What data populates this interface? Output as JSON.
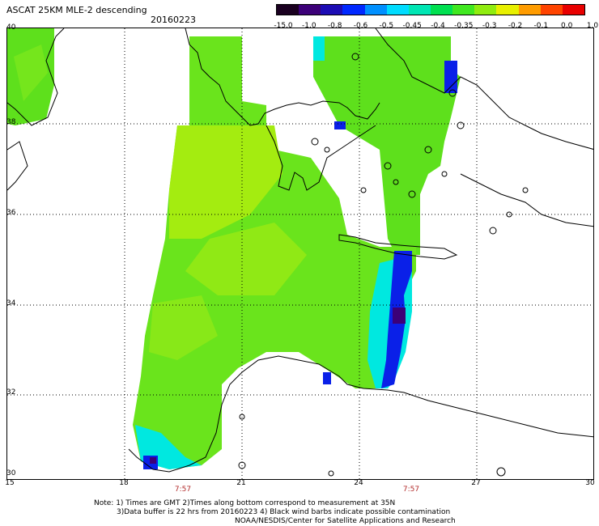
{
  "header": {
    "title": "ASCAT 25KM MLE-2 descending",
    "date": "20160223"
  },
  "colorbar": {
    "labels": [
      "-15.0",
      "-1.0",
      "-0.8",
      "-0.6",
      "-0.5",
      "-0.45",
      "-0.4",
      "-0.35",
      "-0.3",
      "-0.2",
      "-0.1",
      "0.0",
      "1.0"
    ],
    "colors": [
      "#1a0020",
      "#3c0078",
      "#1c0cb4",
      "#0028ff",
      "#0090ff",
      "#00dcff",
      "#00e6b4",
      "#00e050",
      "#40e820",
      "#90ec10",
      "#e8f000",
      "#ff9c00",
      "#ff4400",
      "#e80000"
    ]
  },
  "axes": {
    "lat_labels": [
      "40",
      "38",
      "36",
      "34",
      "32",
      "30"
    ],
    "lon_labels": [
      "15",
      "18",
      "21",
      "24",
      "27",
      "30"
    ]
  },
  "times": [
    "7:57",
    "7:57"
  ],
  "notes": {
    "line1": "Note: 1) Times are GMT 2)Times along bottom correspond to measurement at 35N",
    "line2": "3)Data buffer is 22 hrs from 20160223 4) Black wind barbs indicate possible contamination",
    "line3": "NOAA/NESDIS/Center for Satellite Applications and Research"
  },
  "palette": {
    "land_line": "#000000",
    "swath_green": "#5ee01c",
    "swath_lime": "#a4ec10",
    "swath_cyan": "#00e8e0",
    "swath_blue": "#0a20e8",
    "swath_violet": "#3c0078"
  }
}
